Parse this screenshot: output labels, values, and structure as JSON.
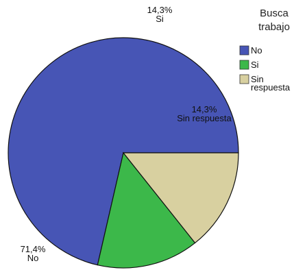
{
  "chart_data": {
    "type": "pie",
    "legend": {
      "title_lines": [
        "Busca",
        "trabajo"
      ],
      "placement": "right"
    },
    "slices": [
      {
        "name": "No",
        "legend_lines": [
          "No"
        ],
        "value": 71.4,
        "display": "71,4%",
        "color": "#4755b5"
      },
      {
        "name": "Si",
        "legend_lines": [
          "Si"
        ],
        "value": 14.3,
        "display": "14,3%",
        "color": "#3cb84a"
      },
      {
        "name": "Sin respuesta",
        "legend_lines": [
          "Sin",
          "respuesta"
        ],
        "value": 14.3,
        "display": "14,3%",
        "color": "#d8d0a0"
      }
    ]
  }
}
